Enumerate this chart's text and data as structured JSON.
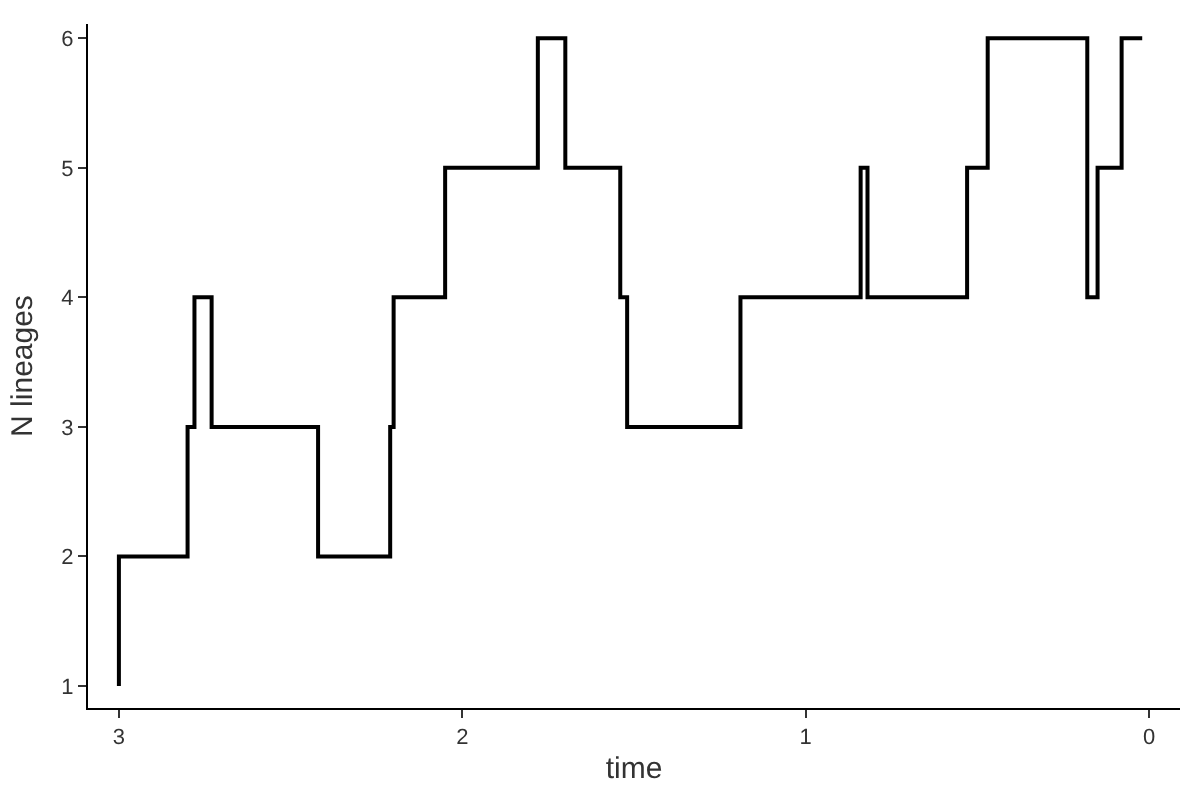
{
  "chart_data": {
    "type": "step",
    "xlabel": "time",
    "ylabel": "N lineages",
    "x": [
      3,
      3,
      2.8,
      2.78,
      2.73,
      2.42,
      2.21,
      2.2,
      2.05,
      1.78,
      1.7,
      1.54,
      1.52,
      1.19,
      0.84,
      0.82,
      0.53,
      0.47,
      0.18,
      0.18,
      0.15,
      0.08,
      0.02
    ],
    "series": [
      {
        "color": "#000000",
        "values": [
          1,
          2,
          3,
          4,
          3,
          2,
          3,
          4,
          5,
          6,
          5,
          4,
          3,
          4,
          5,
          4,
          5,
          6,
          5,
          4,
          5,
          6,
          6
        ]
      }
    ],
    "xlim": [
      3.09,
      -0.09
    ],
    "xticks": [
      3,
      2,
      1,
      0
    ],
    "ylim": [
      0.83,
      6.11
    ],
    "yticks": [
      1,
      2,
      3,
      4,
      5,
      6
    ],
    "grid": false,
    "marker": "none",
    "line_style": "solid"
  }
}
